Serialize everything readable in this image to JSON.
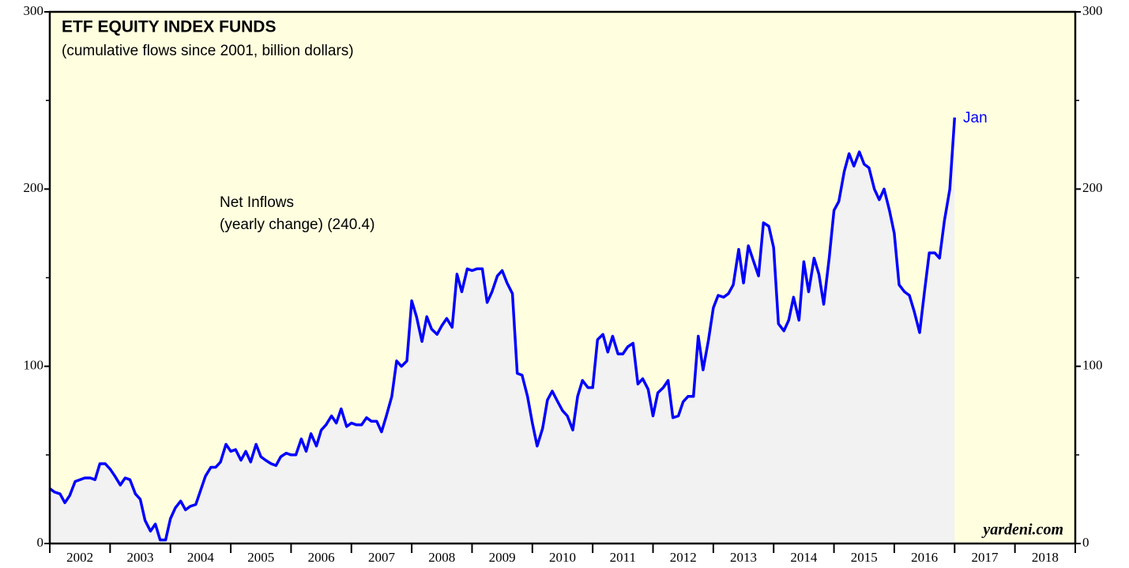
{
  "chart_data": {
    "type": "line",
    "title": "ETF EQUITY INDEX FUNDS",
    "subtitle": "(cumulative flows since 2001, billion dollars)",
    "annotations": [
      "Net Inflows",
      "(yearly change) (240.4)"
    ],
    "end_label": "Jan",
    "source": "yardeni.com",
    "color": "#0000ff",
    "area_color": "#f2f2f2",
    "background": "#ffffe0",
    "xlim": [
      2002,
      2019
    ],
    "xticks": [
      {
        "value": 2002.5,
        "label": "2002"
      },
      {
        "value": 2003.5,
        "label": "2003"
      },
      {
        "value": 2004.5,
        "label": "2004"
      },
      {
        "value": 2005.5,
        "label": "2005"
      },
      {
        "value": 2006.5,
        "label": "2006"
      },
      {
        "value": 2007.5,
        "label": "2007"
      },
      {
        "value": 2008.5,
        "label": "2008"
      },
      {
        "value": 2009.5,
        "label": "2009"
      },
      {
        "value": 2010.5,
        "label": "2010"
      },
      {
        "value": 2011.5,
        "label": "2011"
      },
      {
        "value": 2012.5,
        "label": "2012"
      },
      {
        "value": 2013.5,
        "label": "2013"
      },
      {
        "value": 2014.5,
        "label": "2014"
      },
      {
        "value": 2015.5,
        "label": "2015"
      },
      {
        "value": 2016.5,
        "label": "2016"
      },
      {
        "value": 2017.5,
        "label": "2017"
      },
      {
        "value": 2018.5,
        "label": "2018"
      }
    ],
    "ylim": [
      0,
      300
    ],
    "yticks": [
      0,
      100,
      200,
      300
    ],
    "yticks_minor": [
      50,
      150,
      250
    ],
    "x": [
      2002.0,
      2002.08,
      2002.17,
      2002.25,
      2002.33,
      2002.42,
      2002.5,
      2002.58,
      2002.67,
      2002.75,
      2002.83,
      2002.92,
      2003.0,
      2003.08,
      2003.17,
      2003.25,
      2003.33,
      2003.42,
      2003.5,
      2003.58,
      2003.67,
      2003.75,
      2003.83,
      2003.92,
      2004.0,
      2004.08,
      2004.17,
      2004.25,
      2004.33,
      2004.42,
      2004.5,
      2004.58,
      2004.67,
      2004.75,
      2004.83,
      2004.92,
      2005.0,
      2005.08,
      2005.17,
      2005.25,
      2005.33,
      2005.42,
      2005.5,
      2005.58,
      2005.67,
      2005.75,
      2005.83,
      2005.92,
      2006.0,
      2006.08,
      2006.17,
      2006.25,
      2006.33,
      2006.42,
      2006.5,
      2006.58,
      2006.67,
      2006.75,
      2006.83,
      2006.92,
      2007.0,
      2007.08,
      2007.17,
      2007.25,
      2007.33,
      2007.42,
      2007.5,
      2007.58,
      2007.67,
      2007.75,
      2007.83,
      2007.92,
      2008.0,
      2008.08,
      2008.17,
      2008.25,
      2008.33,
      2008.42,
      2008.5,
      2008.58,
      2008.67,
      2008.75,
      2008.83,
      2008.92,
      2009.0,
      2009.08,
      2009.17,
      2009.25,
      2009.33,
      2009.42,
      2009.5,
      2009.58,
      2009.67,
      2009.75,
      2009.83,
      2009.92,
      2010.0,
      2010.08,
      2010.17,
      2010.25,
      2010.33,
      2010.42,
      2010.5,
      2010.58,
      2010.67,
      2010.75,
      2010.83,
      2010.92,
      2011.0,
      2011.08,
      2011.17,
      2011.25,
      2011.33,
      2011.42,
      2011.5,
      2011.58,
      2011.67,
      2011.75,
      2011.83,
      2011.92,
      2012.0,
      2012.08,
      2012.17,
      2012.25,
      2012.33,
      2012.42,
      2012.5,
      2012.58,
      2012.67,
      2012.75,
      2012.83,
      2012.92,
      2013.0,
      2013.08,
      2013.17,
      2013.25,
      2013.33,
      2013.42,
      2013.5,
      2013.58,
      2013.67,
      2013.75,
      2013.83,
      2013.92,
      2014.0,
      2014.08,
      2014.17,
      2014.25,
      2014.33,
      2014.42,
      2014.5,
      2014.58,
      2014.67,
      2014.75,
      2014.83,
      2014.92,
      2015.0,
      2015.08,
      2015.17,
      2015.25,
      2015.33,
      2015.42,
      2015.5,
      2015.58,
      2015.67,
      2015.75,
      2015.83,
      2015.92,
      2016.0,
      2016.08,
      2016.17,
      2016.25,
      2016.33,
      2016.42,
      2016.5,
      2016.58,
      2016.67,
      2016.75,
      2016.83,
      2016.92,
      2017.0
    ],
    "values": [
      31,
      29,
      28,
      23,
      27,
      35,
      36,
      37,
      37,
      36,
      45,
      45,
      42,
      38,
      33,
      37,
      36,
      28,
      25,
      13,
      7,
      11,
      2,
      2,
      14,
      20,
      24,
      19,
      21,
      22,
      30,
      38,
      43,
      43,
      46,
      56,
      52,
      53,
      47,
      52,
      46,
      56,
      49,
      47,
      45,
      44,
      49,
      51,
      50,
      50,
      59,
      52,
      62,
      55,
      64,
      67,
      72,
      68,
      76,
      66,
      68,
      67,
      67,
      71,
      69,
      69,
      63,
      72,
      83,
      103,
      100,
      103,
      137,
      128,
      114,
      128,
      121,
      118,
      123,
      127,
      122,
      152,
      142,
      155,
      154,
      155,
      155,
      136,
      142,
      151,
      154,
      147,
      141,
      96,
      95,
      83,
      68,
      55,
      65,
      81,
      86,
      80,
      75,
      72,
      64,
      83,
      92,
      88,
      88,
      115,
      118,
      108,
      117,
      107,
      107,
      111,
      113,
      90,
      93,
      87,
      72,
      85,
      88,
      92,
      71,
      72,
      80,
      83,
      83,
      117,
      98,
      115,
      133,
      140,
      139,
      141,
      146,
      166,
      147,
      168,
      159,
      151,
      181,
      179,
      167,
      124,
      120,
      126,
      139,
      126,
      159,
      142,
      161,
      152,
      135,
      161,
      188,
      193,
      210,
      220,
      213,
      221,
      214,
      212,
      200,
      194,
      200,
      188,
      175,
      146,
      142,
      140,
      131,
      119,
      142,
      164,
      164,
      161,
      182,
      200,
      240.4
    ]
  }
}
